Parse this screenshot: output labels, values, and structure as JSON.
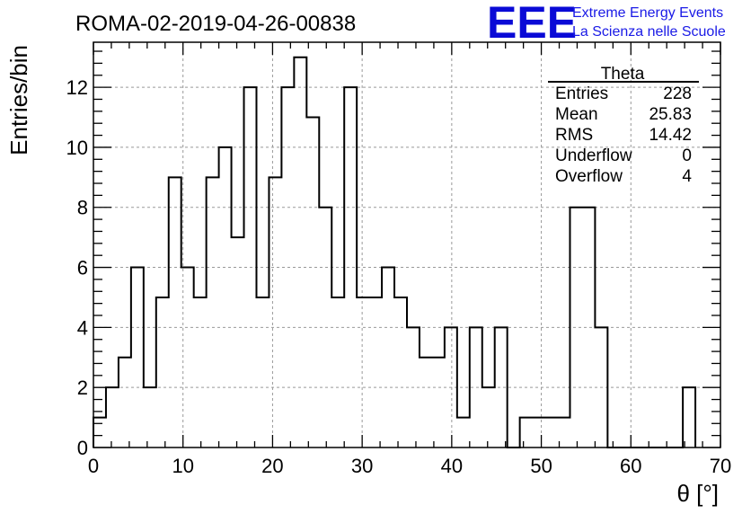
{
  "chart_data": {
    "type": "bar",
    "title": "ROMA-02-2019-04-26-00838",
    "xlabel": "θ [°]",
    "ylabel": "Entries/bin",
    "xlim": [
      0,
      70
    ],
    "ylim": [
      0,
      13.5
    ],
    "grid": true,
    "x_ticks": [
      0,
      10,
      20,
      30,
      40,
      50,
      60,
      70
    ],
    "y_ticks": [
      0,
      2,
      4,
      6,
      8,
      10,
      12
    ],
    "bin_width": 1.4,
    "bin_edges_start": 0,
    "values": [
      1,
      2,
      3,
      6,
      2,
      5,
      9,
      6,
      5,
      9,
      10,
      7,
      12,
      5,
      9,
      12,
      13,
      11,
      8,
      5,
      12,
      5,
      5,
      6,
      5,
      4,
      3,
      3,
      4,
      1,
      4,
      2,
      4,
      0,
      1,
      1,
      1,
      1,
      8,
      8,
      4,
      0,
      0,
      0,
      0,
      0,
      0,
      2
    ]
  },
  "logo": {
    "mark": "EEE",
    "line1": "Extreme Energy Events",
    "line2": "La Scienza nelle Scuole"
  },
  "stats": {
    "name": "Theta",
    "rows": [
      {
        "label": "Entries",
        "value": "228"
      },
      {
        "label": "Mean",
        "value": "25.83"
      },
      {
        "label": "RMS",
        "value": "14.42"
      },
      {
        "label": "Underflow",
        "value": "0"
      },
      {
        "label": "Overflow",
        "value": "4"
      }
    ]
  }
}
